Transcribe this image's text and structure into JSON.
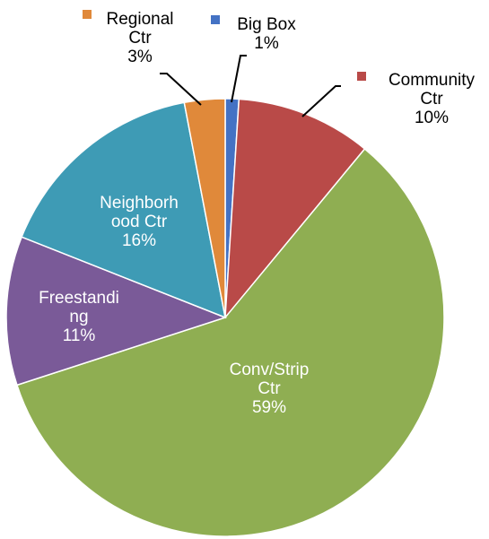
{
  "chart_data": {
    "type": "pie",
    "title": "",
    "slices": [
      {
        "name": "Big Box",
        "value": 1,
        "pct_label": "1%",
        "color": "#4472C4",
        "label_lines": [
          "Big Box",
          "1%"
        ],
        "label_inside": false,
        "legend_marker": true
      },
      {
        "name": "Community Ctr",
        "value": 10,
        "pct_label": "10%",
        "color": "#B94A48",
        "label_lines": [
          "Community",
          "Ctr",
          "10%"
        ],
        "label_inside": false,
        "legend_marker": true
      },
      {
        "name": "Conv/Strip Ctr",
        "value": 59,
        "pct_label": "59%",
        "color": "#8FAE52",
        "label_lines": [
          "Conv/Strip",
          "Ctr",
          "59%"
        ],
        "label_inside": true,
        "legend_marker": false
      },
      {
        "name": "Freestanding",
        "value": 11,
        "pct_label": "11%",
        "color": "#7A5A98",
        "label_lines": [
          "Freestandi",
          "ng",
          "11%"
        ],
        "label_inside": true,
        "legend_marker": false
      },
      {
        "name": "Neighborhood Ctr",
        "value": 16,
        "pct_label": "16%",
        "color": "#3E9BB5",
        "label_lines": [
          "Neighborh",
          "ood Ctr",
          "16%"
        ],
        "label_inside": true,
        "legend_marker": false
      },
      {
        "name": "Regional Ctr",
        "value": 3,
        "pct_label": "3%",
        "color": "#E0893A",
        "label_lines": [
          "Regional",
          "Ctr",
          "3%"
        ],
        "label_inside": false,
        "legend_marker": true
      }
    ]
  }
}
